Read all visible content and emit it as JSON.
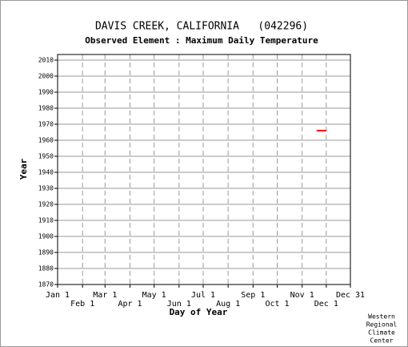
{
  "chart_data": {
    "type": "segment",
    "title": "DAVIS CREEK, CALIFORNIA   (042296)",
    "subtitle": "Observed Element : Maximum Daily Temperature",
    "xlabel": "Day of Year",
    "ylabel": "Year",
    "xlim": [
      1,
      365
    ],
    "ylim": [
      1870,
      2013.5
    ],
    "xticks": [
      {
        "value": 1,
        "label": "Jan 1"
      },
      {
        "value": 32,
        "label": "Feb 1"
      },
      {
        "value": 60,
        "label": "Mar 1"
      },
      {
        "value": 91,
        "label": "Apr 1"
      },
      {
        "value": 121,
        "label": "May 1"
      },
      {
        "value": 152,
        "label": "Jun 1"
      },
      {
        "value": 182,
        "label": "Jul 1"
      },
      {
        "value": 213,
        "label": "Aug 1"
      },
      {
        "value": 244,
        "label": "Sep 1"
      },
      {
        "value": 274,
        "label": "Oct 1"
      },
      {
        "value": 305,
        "label": "Nov 1"
      },
      {
        "value": 335,
        "label": "Dec 1"
      },
      {
        "value": 365,
        "label": "Dec 31"
      }
    ],
    "yticks": [
      1870,
      1880,
      1890,
      1900,
      1910,
      1920,
      1930,
      1940,
      1950,
      1960,
      1970,
      1980,
      1990,
      2000,
      2010
    ],
    "segments": [
      {
        "start": 323,
        "end": 335,
        "year": 1966
      }
    ],
    "color": "#ff0000",
    "grid": true,
    "credit": [
      "Western",
      "Regional",
      "Climate",
      "Center"
    ]
  }
}
